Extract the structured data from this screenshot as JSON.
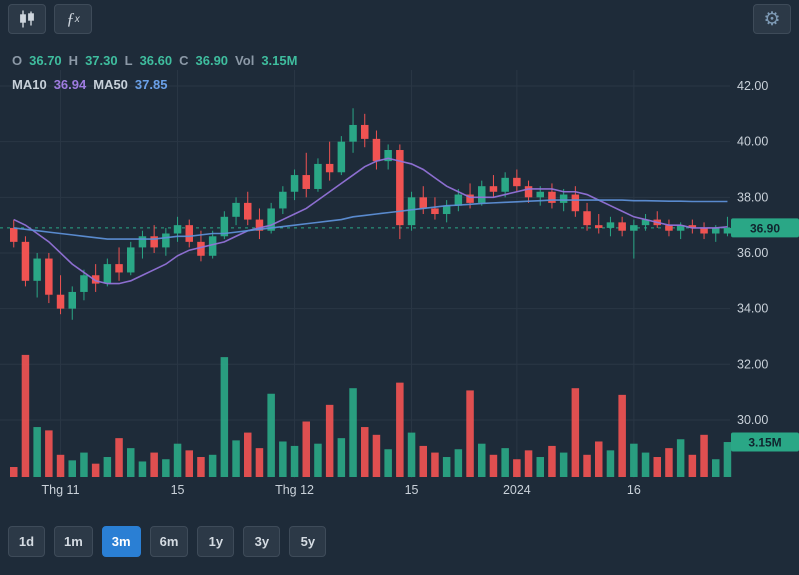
{
  "colors": {
    "bg": "#1e2b39",
    "up": "#2aa786",
    "down": "#f05352",
    "ma10": "#9272d8",
    "ma50": "#5d8fd6",
    "grid": "#2a3745",
    "axis_text": "#c9d1d9",
    "value_text": "#3fbd9e",
    "active_button": "#2a7fd4",
    "tag_bg": "#2aa786",
    "tag_text": "#10242e"
  },
  "header": {
    "fx_f": "ƒ",
    "fx_x": "x",
    "gear_glyph": "⚙",
    "icons": [
      "candlestick-chart-icon",
      "function-icon",
      "gear-icon"
    ]
  },
  "legend": {
    "ohlc": [
      {
        "label": "O",
        "value": "36.70"
      },
      {
        "label": "H",
        "value": "37.30"
      },
      {
        "label": "L",
        "value": "36.60"
      },
      {
        "label": "C",
        "value": "36.90"
      },
      {
        "label": "Vol",
        "value": "3.15M"
      }
    ],
    "ma": [
      {
        "label": "MA10",
        "value": "36.94",
        "color": "#9f7ce0"
      },
      {
        "label": "MA50",
        "value": "37.85",
        "color": "#6aa0e8"
      }
    ]
  },
  "toolbar": {
    "timeframes": [
      {
        "label": "1d",
        "active": false
      },
      {
        "label": "1m",
        "active": false
      },
      {
        "label": "3m",
        "active": true
      },
      {
        "label": "6m",
        "active": false
      },
      {
        "label": "1y",
        "active": false
      },
      {
        "label": "3y",
        "active": false
      },
      {
        "label": "5y",
        "active": false
      }
    ]
  },
  "chart_data": {
    "type": "candlestick",
    "title": "",
    "grid": true,
    "legend_position": "top-left",
    "y_axis": {
      "range": [
        29.5,
        42.5
      ],
      "ticks": [
        {
          "value": 42,
          "label": "42.00"
        },
        {
          "value": 40,
          "label": "40.00"
        },
        {
          "value": 38,
          "label": "38.00"
        },
        {
          "value": 36,
          "label": "36.00"
        },
        {
          "value": 34,
          "label": "34.00"
        },
        {
          "value": 32,
          "label": "32.00"
        },
        {
          "value": 30,
          "label": "30.00"
        }
      ]
    },
    "x_axis": {
      "ticks": [
        {
          "index": 4,
          "label": "Thg 11"
        },
        {
          "index": 14,
          "label": "15"
        },
        {
          "index": 24,
          "label": "Thg 12"
        },
        {
          "index": 34,
          "label": "15"
        },
        {
          "index": 43,
          "label": "2024"
        },
        {
          "index": 53,
          "label": "16"
        }
      ]
    },
    "last_price": {
      "value": 36.9,
      "label": "36.90"
    },
    "last_volume": {
      "value": 3.15,
      "label": "3.15M"
    },
    "candles": [
      [
        36.9,
        37.2,
        36.2,
        36.4
      ],
      [
        36.4,
        36.6,
        34.8,
        35.0
      ],
      [
        35.0,
        36.0,
        34.4,
        35.8
      ],
      [
        35.8,
        36.0,
        34.2,
        34.5
      ],
      [
        34.5,
        35.2,
        33.8,
        34.0
      ],
      [
        34.0,
        34.8,
        33.6,
        34.6
      ],
      [
        34.6,
        35.4,
        34.3,
        35.2
      ],
      [
        35.2,
        35.6,
        34.6,
        34.9
      ],
      [
        34.9,
        35.8,
        34.8,
        35.6
      ],
      [
        35.6,
        36.2,
        35.0,
        35.3
      ],
      [
        35.3,
        36.4,
        35.2,
        36.2
      ],
      [
        36.2,
        36.8,
        35.8,
        36.6
      ],
      [
        36.6,
        37.0,
        36.0,
        36.2
      ],
      [
        36.2,
        36.9,
        35.9,
        36.7
      ],
      [
        36.7,
        37.3,
        36.4,
        37.0
      ],
      [
        37.0,
        37.2,
        36.2,
        36.4
      ],
      [
        36.4,
        36.8,
        35.7,
        35.9
      ],
      [
        35.9,
        36.8,
        35.8,
        36.6
      ],
      [
        36.6,
        37.5,
        36.5,
        37.3
      ],
      [
        37.3,
        38.0,
        37.0,
        37.8
      ],
      [
        37.8,
        38.2,
        37.0,
        37.2
      ],
      [
        37.2,
        37.6,
        36.5,
        36.8
      ],
      [
        36.8,
        37.8,
        36.7,
        37.6
      ],
      [
        37.6,
        38.4,
        37.4,
        38.2
      ],
      [
        38.2,
        39.0,
        37.9,
        38.8
      ],
      [
        38.8,
        39.6,
        38.0,
        38.3
      ],
      [
        38.3,
        39.4,
        38.2,
        39.2
      ],
      [
        39.2,
        40.0,
        38.6,
        38.9
      ],
      [
        38.9,
        40.2,
        38.8,
        40.0
      ],
      [
        40.0,
        41.2,
        39.6,
        40.6
      ],
      [
        40.6,
        41.0,
        39.8,
        40.1
      ],
      [
        40.1,
        40.4,
        39.0,
        39.3
      ],
      [
        39.3,
        39.9,
        39.0,
        39.7
      ],
      [
        39.7,
        39.9,
        36.5,
        37.0
      ],
      [
        37.0,
        38.2,
        36.8,
        38.0
      ],
      [
        38.0,
        38.4,
        37.4,
        37.6
      ],
      [
        37.6,
        38.0,
        37.2,
        37.4
      ],
      [
        37.4,
        37.9,
        37.1,
        37.7
      ],
      [
        37.7,
        38.3,
        37.5,
        38.1
      ],
      [
        38.1,
        38.5,
        37.6,
        37.8
      ],
      [
        37.8,
        38.6,
        37.7,
        38.4
      ],
      [
        38.4,
        38.8,
        38.0,
        38.2
      ],
      [
        38.2,
        38.9,
        38.0,
        38.7
      ],
      [
        38.7,
        39.0,
        38.2,
        38.4
      ],
      [
        38.4,
        38.6,
        37.8,
        38.0
      ],
      [
        38.0,
        38.4,
        37.7,
        38.2
      ],
      [
        38.2,
        38.5,
        37.6,
        37.8
      ],
      [
        37.8,
        38.3,
        37.5,
        38.1
      ],
      [
        38.1,
        38.4,
        37.3,
        37.5
      ],
      [
        37.5,
        37.8,
        36.8,
        37.0
      ],
      [
        37.0,
        37.4,
        36.7,
        36.9
      ],
      [
        36.9,
        37.3,
        36.6,
        37.1
      ],
      [
        37.1,
        37.3,
        36.6,
        36.8
      ],
      [
        36.8,
        37.2,
        35.8,
        37.0
      ],
      [
        37.0,
        37.4,
        36.8,
        37.2
      ],
      [
        37.2,
        37.5,
        36.9,
        37.0
      ],
      [
        37.0,
        37.2,
        36.6,
        36.8
      ],
      [
        36.8,
        37.1,
        36.5,
        37.0
      ],
      [
        37.0,
        37.2,
        36.7,
        36.9
      ],
      [
        36.9,
        37.1,
        36.5,
        36.7
      ],
      [
        36.7,
        37.0,
        36.4,
        36.9
      ],
      [
        36.7,
        37.3,
        36.6,
        36.9
      ]
    ],
    "volumes": [
      0.9,
      11.0,
      4.5,
      4.2,
      2.0,
      1.5,
      2.2,
      1.2,
      1.8,
      3.5,
      2.6,
      1.4,
      2.2,
      1.6,
      3.0,
      2.4,
      1.8,
      2.0,
      10.8,
      3.3,
      4.0,
      2.6,
      7.5,
      3.2,
      2.8,
      5.0,
      3.0,
      6.5,
      3.5,
      8.0,
      4.5,
      3.8,
      2.5,
      8.5,
      4.0,
      2.8,
      2.2,
      1.8,
      2.5,
      7.8,
      3.0,
      2.0,
      2.6,
      1.6,
      2.4,
      1.8,
      2.8,
      2.2,
      8.0,
      2.0,
      3.2,
      2.4,
      7.4,
      3.0,
      2.2,
      1.8,
      2.6,
      3.4,
      2.0,
      3.8,
      1.6,
      3.15
    ],
    "ma10": [
      37.2,
      37.0,
      36.7,
      36.4,
      36.0,
      35.6,
      35.3,
      35.0,
      34.9,
      34.9,
      35.0,
      35.2,
      35.4,
      35.6,
      35.9,
      36.1,
      36.2,
      36.3,
      36.4,
      36.6,
      36.8,
      36.9,
      37.0,
      37.2,
      37.4,
      37.6,
      37.9,
      38.2,
      38.5,
      38.8,
      39.1,
      39.3,
      39.4,
      39.3,
      39.2,
      39.0,
      38.7,
      38.4,
      38.2,
      38.0,
      38.0,
      38.0,
      38.1,
      38.2,
      38.3,
      38.3,
      38.3,
      38.2,
      38.2,
      38.1,
      37.9,
      37.7,
      37.5,
      37.3,
      37.2,
      37.1,
      37.0,
      37.0,
      36.9,
      36.9,
      36.9,
      36.94
    ],
    "ma50": [
      36.9,
      36.85,
      36.8,
      36.75,
      36.7,
      36.65,
      36.6,
      36.55,
      36.5,
      36.5,
      36.5,
      36.5,
      36.5,
      36.55,
      36.6,
      36.6,
      36.65,
      36.7,
      36.7,
      36.75,
      36.8,
      36.85,
      36.9,
      36.95,
      37.0,
      37.05,
      37.1,
      37.15,
      37.2,
      37.3,
      37.35,
      37.4,
      37.45,
      37.5,
      37.55,
      37.6,
      37.65,
      37.7,
      37.72,
      37.75,
      37.78,
      37.8,
      37.82,
      37.84,
      37.86,
      37.88,
      37.9,
      37.9,
      37.9,
      37.9,
      37.9,
      37.9,
      37.9,
      37.88,
      37.88,
      37.87,
      37.86,
      37.86,
      37.85,
      37.85,
      37.85,
      37.85
    ]
  }
}
